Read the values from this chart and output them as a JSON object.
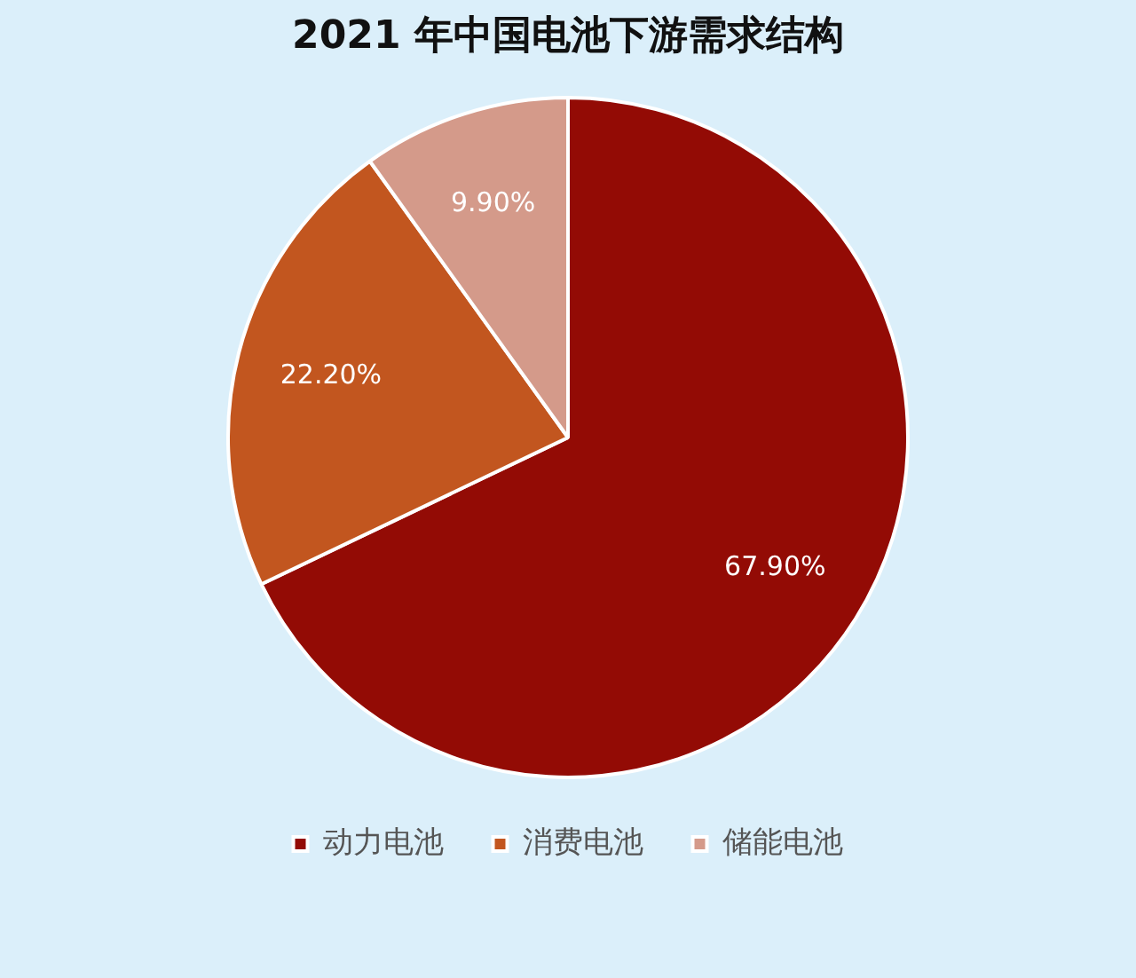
{
  "chart_data": {
    "type": "pie",
    "title": "2021 年中国电池下游需求结构",
    "categories": [
      "动力电池",
      "消费电池",
      "储能电池"
    ],
    "values": [
      67.9,
      22.2,
      9.9
    ],
    "value_labels": [
      "67.90%",
      "22.20%",
      "9.90%"
    ],
    "colors": [
      "#930b05",
      "#c2561f",
      "#d49a8a"
    ],
    "legend": "bottom"
  }
}
